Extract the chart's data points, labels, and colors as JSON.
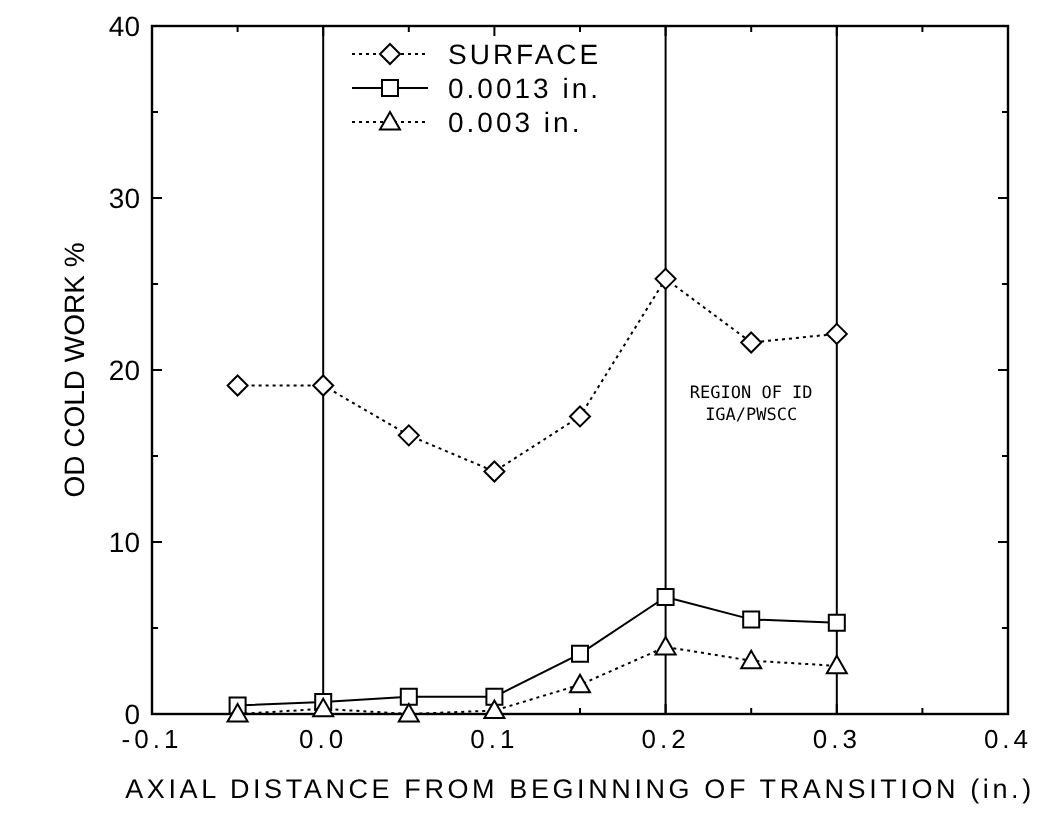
{
  "chart_data": {
    "type": "line",
    "xlabel": "AXIAL DISTANCE FROM BEGINNING OF TRANSITION (in.)",
    "ylabel": "OD COLD WORK %",
    "x": [
      -0.05,
      0,
      0.05,
      0.1,
      0.15,
      0.2,
      0.25,
      0.3
    ],
    "series": [
      {
        "name": "SURFACE",
        "color": "#000000",
        "marker": "diamond",
        "line_style": "dotted",
        "values": [
          19.1,
          19.1,
          16.2,
          14.1,
          17.3,
          25.3,
          21.6,
          22.1
        ]
      },
      {
        "name": "0.0013 in.",
        "color": "#000000",
        "marker": "square",
        "line_style": "solid",
        "values": [
          0.5,
          0.7,
          1.0,
          1.0,
          3.5,
          6.8,
          5.5,
          5.3
        ]
      },
      {
        "name": "0.003 in.",
        "color": "#000000",
        "marker": "triangle",
        "line_style": "dotted",
        "values": [
          0,
          0.3,
          0,
          0.2,
          1.7,
          3.9,
          3.1,
          2.8
        ]
      }
    ],
    "xlim": [
      -0.1,
      0.4
    ],
    "xticks": [
      -0.1,
      {
        "value": -0.05,
        "label": null
      },
      {
        "value": 0,
        "label": "0.0"
      },
      {
        "value": 0.05,
        "label": null
      },
      0.1,
      {
        "value": 0.15,
        "label": null
      },
      0.2,
      {
        "value": 0.25,
        "label": null
      },
      0.3,
      {
        "value": 0.35,
        "label": null
      },
      0.4
    ],
    "ylim": [
      0,
      40
    ],
    "yticks": [
      0,
      {
        "value": 5,
        "label": null
      },
      10,
      {
        "value": 15,
        "label": null
      },
      20,
      {
        "value": 25,
        "label": null
      },
      30,
      {
        "value": 35,
        "label": null
      },
      40
    ],
    "ref_lines": [
      {
        "axis": "x",
        "value": 0,
        "color": "#000000"
      },
      {
        "axis": "x",
        "value": 0.2,
        "color": "#000000"
      },
      {
        "axis": "x",
        "value": 0.3,
        "color": "#000000"
      }
    ],
    "annotations": [
      "REGION OF ID\nIGA/PWSCC"
    ],
    "grid": false,
    "legend": "top left"
  }
}
